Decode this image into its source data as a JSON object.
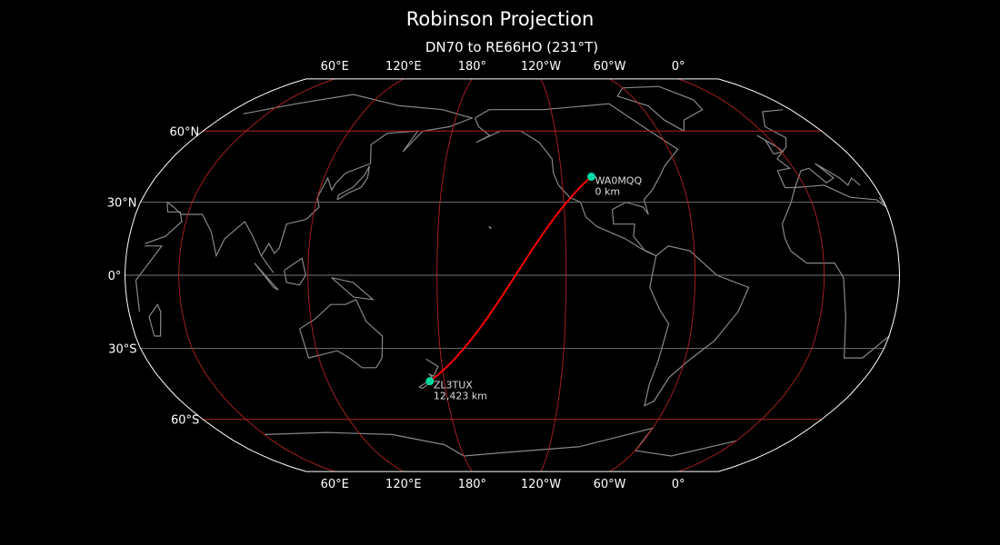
{
  "title": "Robinson Projection",
  "subtitle": "DN70 to RE66HO (231°T)",
  "map": {
    "projection": "robinson",
    "central_longitude": -145,
    "colors": {
      "background": "#000000",
      "coastline": "#888888",
      "outline": "#ffffff",
      "meridian": "#b22222",
      "parallel_major": "#b22222",
      "parallel_minor": "#777777",
      "path": "#ff0000",
      "marker": "#00d8a0"
    },
    "lon_ticks": [
      {
        "lon": 60,
        "label": "60°E"
      },
      {
        "lon": 120,
        "label": "120°E"
      },
      {
        "lon": 180,
        "label": "180°"
      },
      {
        "lon": -120,
        "label": "120°W"
      },
      {
        "lon": -60,
        "label": "60°W"
      },
      {
        "lon": 0,
        "label": "0°"
      }
    ],
    "lat_ticks": [
      {
        "lat": 60,
        "label": "60°N"
      },
      {
        "lat": 30,
        "label": "30°N"
      },
      {
        "lat": 0,
        "label": "0°"
      },
      {
        "lat": -30,
        "label": "30°S"
      },
      {
        "lat": -60,
        "label": "60°S"
      }
    ],
    "points": [
      {
        "call": "WA0MQQ",
        "distance": "0 km",
        "lon": -105,
        "lat": 40.5
      },
      {
        "call": "ZL3TUX",
        "distance": "12,423 km",
        "lon": 172.6,
        "lat": -43.6
      }
    ]
  }
}
